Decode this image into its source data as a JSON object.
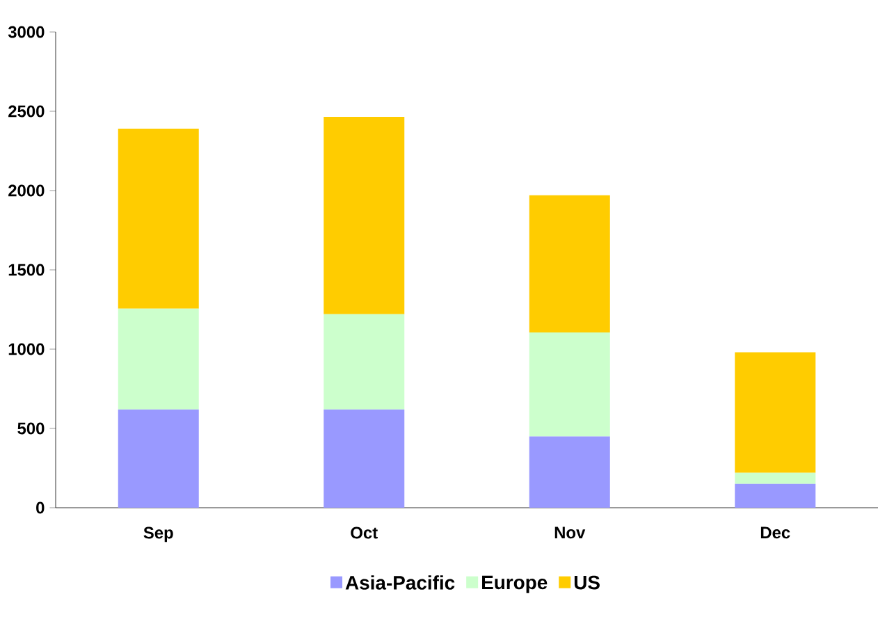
{
  "chart_data": {
    "type": "bar",
    "stacked": true,
    "categories": [
      "Sep",
      "Oct",
      "Nov",
      "Dec"
    ],
    "series": [
      {
        "name": "Asia-Pacific",
        "color": "#9999ff",
        "values": [
          620,
          620,
          450,
          150
        ]
      },
      {
        "name": "Europe",
        "color": "#ccffcc",
        "values": [
          635,
          600,
          655,
          70
        ]
      },
      {
        "name": "US",
        "color": "#ffcc00",
        "values": [
          1135,
          1245,
          865,
          760
        ]
      }
    ],
    "ylim": [
      0,
      3000
    ],
    "yticks": [
      0,
      500,
      1000,
      1500,
      2000,
      2500,
      3000
    ],
    "grid": false,
    "legend": "bottom"
  }
}
